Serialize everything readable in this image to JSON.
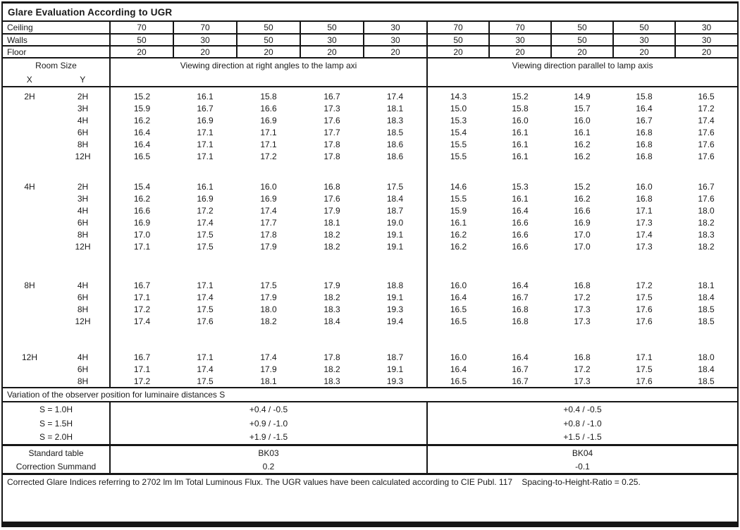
{
  "title": "Glare Evaluation According to UGR",
  "surface_rows": [
    {
      "label": "Ceiling",
      "values": [
        "70",
        "70",
        "50",
        "50",
        "30",
        "70",
        "70",
        "50",
        "50",
        "30"
      ]
    },
    {
      "label": "Walls",
      "values": [
        "50",
        "30",
        "50",
        "30",
        "30",
        "50",
        "30",
        "50",
        "30",
        "30"
      ]
    },
    {
      "label": "Floor",
      "values": [
        "20",
        "20",
        "20",
        "20",
        "20",
        "20",
        "20",
        "20",
        "20",
        "20"
      ]
    }
  ],
  "header": {
    "room_size": "Room Size",
    "x_label": "X",
    "y_label": "Y",
    "left_direction": "Viewing direction at right angles to the lamp axi",
    "right_direction": "Viewing direction parallel to lamp axis"
  },
  "blocks": [
    {
      "x": "2H",
      "rows": [
        {
          "y": "2H",
          "values": [
            "15.2",
            "16.1",
            "15.8",
            "16.7",
            "17.4",
            "14.3",
            "15.2",
            "14.9",
            "15.8",
            "16.5"
          ]
        },
        {
          "y": "3H",
          "values": [
            "15.9",
            "16.7",
            "16.6",
            "17.3",
            "18.1",
            "15.0",
            "15.8",
            "15.7",
            "16.4",
            "17.2"
          ]
        },
        {
          "y": "4H",
          "values": [
            "16.2",
            "16.9",
            "16.9",
            "17.6",
            "18.3",
            "15.3",
            "16.0",
            "16.0",
            "16.7",
            "17.4"
          ]
        },
        {
          "y": "6H",
          "values": [
            "16.4",
            "17.1",
            "17.1",
            "17.7",
            "18.5",
            "15.4",
            "16.1",
            "16.1",
            "16.8",
            "17.6"
          ]
        },
        {
          "y": "8H",
          "values": [
            "16.4",
            "17.1",
            "17.1",
            "17.8",
            "18.6",
            "15.5",
            "16.1",
            "16.2",
            "16.8",
            "17.6"
          ]
        },
        {
          "y": "12H",
          "values": [
            "16.5",
            "17.1",
            "17.2",
            "17.8",
            "18.6",
            "15.5",
            "16.1",
            "16.2",
            "16.8",
            "17.6"
          ]
        }
      ]
    },
    {
      "x": "4H",
      "rows": [
        {
          "y": "2H",
          "values": [
            "15.4",
            "16.1",
            "16.0",
            "16.8",
            "17.5",
            "14.6",
            "15.3",
            "15.2",
            "16.0",
            "16.7"
          ]
        },
        {
          "y": "3H",
          "values": [
            "16.2",
            "16.9",
            "16.9",
            "17.6",
            "18.4",
            "15.5",
            "16.1",
            "16.2",
            "16.8",
            "17.6"
          ]
        },
        {
          "y": "4H",
          "values": [
            "16.6",
            "17.2",
            "17.4",
            "17.9",
            "18.7",
            "15.9",
            "16.4",
            "16.6",
            "17.1",
            "18.0"
          ]
        },
        {
          "y": "6H",
          "values": [
            "16.9",
            "17.4",
            "17.7",
            "18.1",
            "19.0",
            "16.1",
            "16.6",
            "16.9",
            "17.3",
            "18.2"
          ]
        },
        {
          "y": "8H",
          "values": [
            "17.0",
            "17.5",
            "17.8",
            "18.2",
            "19.1",
            "16.2",
            "16.6",
            "17.0",
            "17.4",
            "18.3"
          ]
        },
        {
          "y": "12H",
          "values": [
            "17.1",
            "17.5",
            "17.9",
            "18.2",
            "19.1",
            "16.2",
            "16.6",
            "17.0",
            "17.3",
            "18.2"
          ]
        }
      ]
    },
    {
      "x": "8H",
      "rows": [
        {
          "y": "4H",
          "values": [
            "16.7",
            "17.1",
            "17.5",
            "17.9",
            "18.8",
            "16.0",
            "16.4",
            "16.8",
            "17.2",
            "18.1"
          ]
        },
        {
          "y": "6H",
          "values": [
            "17.1",
            "17.4",
            "17.9",
            "18.2",
            "19.1",
            "16.4",
            "16.7",
            "17.2",
            "17.5",
            "18.4"
          ]
        },
        {
          "y": "8H",
          "values": [
            "17.2",
            "17.5",
            "18.0",
            "18.3",
            "19.3",
            "16.5",
            "16.8",
            "17.3",
            "17.6",
            "18.5"
          ]
        },
        {
          "y": "12H",
          "values": [
            "17.4",
            "17.6",
            "18.2",
            "18.4",
            "19.4",
            "16.5",
            "16.8",
            "17.3",
            "17.6",
            "18.5"
          ]
        }
      ]
    },
    {
      "x": "12H",
      "rows": [
        {
          "y": "4H",
          "values": [
            "16.7",
            "17.1",
            "17.4",
            "17.8",
            "18.7",
            "16.0",
            "16.4",
            "16.8",
            "17.1",
            "18.0"
          ]
        },
        {
          "y": "6H",
          "values": [
            "17.1",
            "17.4",
            "17.9",
            "18.2",
            "19.1",
            "16.4",
            "16.7",
            "17.2",
            "17.5",
            "18.4"
          ]
        },
        {
          "y": "8H",
          "values": [
            "17.2",
            "17.5",
            "18.1",
            "18.3",
            "19.3",
            "16.5",
            "16.7",
            "17.3",
            "17.6",
            "18.5"
          ]
        }
      ]
    }
  ],
  "variation": {
    "title": "Variation of the observer position for luminaire distances S",
    "rows": [
      {
        "label": "S = 1.0H",
        "left": "+0.4 / -0.5",
        "right": "+0.4 / -0.5"
      },
      {
        "label": "S = 1.5H",
        "left": "+0.9 / -1.0",
        "right": "+0.8 / -1.0"
      },
      {
        "label": "S = 2.0H",
        "left": "+1.9 / -1.5",
        "right": "+1.5 / -1.5"
      }
    ]
  },
  "summary": {
    "rows": [
      {
        "label": "Standard table",
        "left": "BK03",
        "right": "BK04"
      },
      {
        "label": "Correction Summand",
        "left": "0.2",
        "right": "-0.1"
      }
    ]
  },
  "footer": "Corrected Glare Indices referring to 2702 lm lm Total Luminous Flux. The UGR values have been calculated according to CIE Publ. 117    Spacing-to-Height-Ratio = 0.25."
}
